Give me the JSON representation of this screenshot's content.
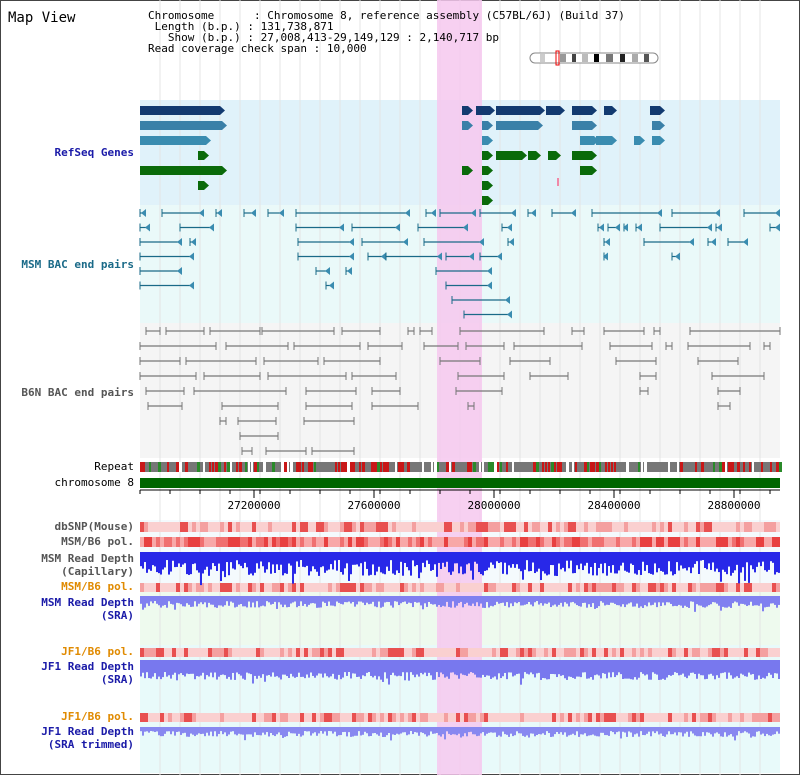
{
  "window_title": "Map View",
  "info": {
    "chromosome_key": "Chromosome",
    "chromosome_val": "Chromosome 8, reference assembly (C57BL/6J) (Build 37)",
    "length_key": "Length (b.p.)",
    "length_val": "131,738,871",
    "show_key": "Show (b.p.)",
    "show_val": "27,008,413-29,149,129 : 2,140,717 bp",
    "span_key": "Read coverage check span",
    "span_val": "10,000"
  },
  "tracks": {
    "refseq": "RefSeq Genes",
    "msm_bac": "MSM BAC end pairs",
    "b6n_bac": "B6N BAC end pairs",
    "repeat": "Repeat",
    "chromosome": "chromosome 8",
    "dbsnp": "dbSNP(Mouse)",
    "msm_b6_pol_1": "MSM/B6 pol.",
    "msm_depth_cap": "MSM Read Depth\n(Capillary)",
    "msm_b6_pol_2": "MSM/B6 pol.",
    "msm_depth_sra": "MSM Read Depth\n(SRA)",
    "jf1_b6_pol_1": "JF1/B6 pol.",
    "jf1_depth_sra": "JF1 Read Depth\n(SRA)",
    "jf1_b6_pol_2": "JF1/B6 pol.",
    "jf1_depth_trim": "JF1 Read Depth\n(SRA trimmed)"
  },
  "axis": {
    "ticks": [
      "27200000",
      "27600000",
      "28000000",
      "28400000",
      "28800000"
    ]
  },
  "colors": {
    "refseq_label": "#1a1aa8",
    "msm_label": "#1a6a88",
    "b6n_label": "#555555",
    "pol_label": "#e08a00",
    "depth_label": "#1a1aa8",
    "highlight": "#f6c8ee",
    "chromosome_bar": "#006600"
  }
}
